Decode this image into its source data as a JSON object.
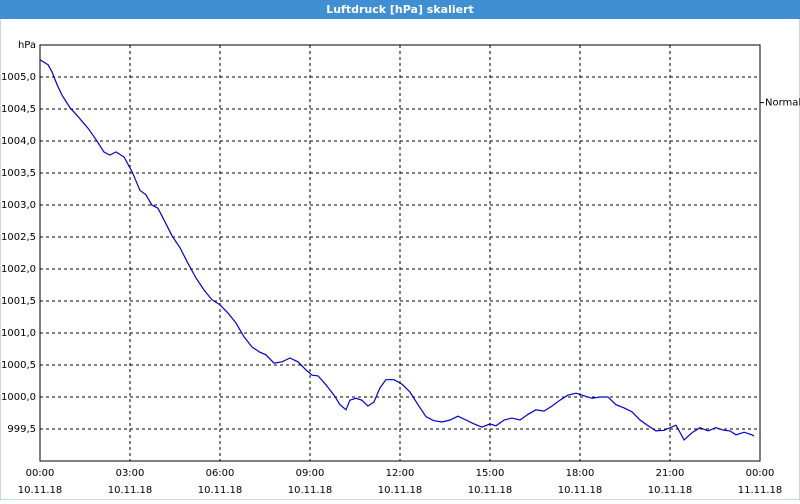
{
  "chart_data": {
    "type": "line",
    "title": "Luftdruck [hPa] skaliert",
    "y_label": "hPa",
    "color": "#0000c8",
    "grid": true,
    "xlim": [
      0,
      24
    ],
    "ylim": [
      999.0,
      1005.5
    ],
    "yticks": [
      {
        "value": 999.5,
        "label": "999,5"
      },
      {
        "value": 1000.0,
        "label": "1000,0"
      },
      {
        "value": 1000.5,
        "label": "1000,5"
      },
      {
        "value": 1001.0,
        "label": "1001,0"
      },
      {
        "value": 1001.5,
        "label": "1001,5"
      },
      {
        "value": 1002.0,
        "label": "1002,0"
      },
      {
        "value": 1002.5,
        "label": "1002,5"
      },
      {
        "value": 1003.0,
        "label": "1003,0"
      },
      {
        "value": 1003.5,
        "label": "1003,5"
      },
      {
        "value": 1004.0,
        "label": "1004,0"
      },
      {
        "value": 1004.5,
        "label": "1004,5"
      },
      {
        "value": 1005.0,
        "label": "1005,0"
      }
    ],
    "xticks": [
      {
        "value": 0,
        "label": "00:00",
        "date": "10.11.18"
      },
      {
        "value": 3,
        "label": "03:00",
        "date": "10.11.18"
      },
      {
        "value": 6,
        "label": "06:00",
        "date": "10.11.18"
      },
      {
        "value": 9,
        "label": "09:00",
        "date": "10.11.18"
      },
      {
        "value": 12,
        "label": "12:00",
        "date": "10.11.18"
      },
      {
        "value": 15,
        "label": "15:00",
        "date": "10.11.18"
      },
      {
        "value": 18,
        "label": "18:00",
        "date": "10.11.18"
      },
      {
        "value": 21,
        "label": "21:00",
        "date": "10.11.18"
      },
      {
        "value": 24,
        "label": "00:00",
        "date": "11.11.18"
      }
    ],
    "reference": {
      "label": "Normal",
      "value": 1004.6
    },
    "x": [
      0,
      0.27,
      0.4,
      0.57,
      0.73,
      1,
      1.27,
      1.6,
      1.87,
      2.13,
      2.33,
      2.53,
      2.8,
      3.07,
      3.33,
      3.53,
      3.73,
      3.93,
      4.13,
      4.4,
      4.67,
      4.93,
      5.2,
      5.47,
      5.73,
      6,
      6.27,
      6.53,
      6.8,
      7.07,
      7.33,
      7.53,
      7.8,
      8.07,
      8.33,
      8.6,
      8.87,
      9.07,
      9.27,
      9.53,
      9.8,
      10,
      10.2,
      10.33,
      10.53,
      10.73,
      10.93,
      11.13,
      11.33,
      11.53,
      11.8,
      12.07,
      12.33,
      12.6,
      12.87,
      13.13,
      13.4,
      13.67,
      13.93,
      14.2,
      14.47,
      14.73,
      15,
      15.2,
      15.47,
      15.73,
      16,
      16.27,
      16.53,
      16.8,
      17.07,
      17.33,
      17.6,
      17.87,
      18.13,
      18.4,
      18.67,
      18.93,
      19.2,
      19.47,
      19.73,
      20,
      20.27,
      20.53,
      20.8,
      21,
      21.2,
      21.47,
      21.73,
      22,
      22.27,
      22.53,
      22.8,
      23,
      23.2,
      23.47,
      23.73,
      23.8
    ],
    "values": [
      1005.27,
      1005.19,
      1005.08,
      1004.88,
      1004.72,
      1004.52,
      1004.38,
      1004.2,
      1004.02,
      1003.83,
      1003.78,
      1003.83,
      1003.75,
      1003.52,
      1003.23,
      1003.16,
      1003.0,
      1002.95,
      1002.77,
      1002.52,
      1002.33,
      1002.09,
      1001.86,
      1001.67,
      1001.52,
      1001.44,
      1001.31,
      1001.16,
      1000.94,
      1000.78,
      1000.7,
      1000.66,
      1000.53,
      1000.55,
      1000.61,
      1000.55,
      1000.42,
      1000.34,
      1000.33,
      1000.19,
      1000.03,
      999.88,
      999.8,
      999.95,
      999.98,
      999.95,
      999.86,
      999.92,
      1000.14,
      1000.27,
      1000.27,
      1000.2,
      1000.08,
      999.88,
      999.69,
      999.63,
      999.61,
      999.64,
      999.7,
      999.64,
      999.58,
      999.53,
      999.58,
      999.55,
      999.64,
      999.67,
      999.64,
      999.73,
      999.8,
      999.78,
      999.86,
      999.95,
      1000.03,
      1000.06,
      1000.02,
      999.98,
      1000.0,
      1000.0,
      999.88,
      999.83,
      999.77,
      999.64,
      999.55,
      999.47,
      999.48,
      999.52,
      999.56,
      999.33,
      999.44,
      999.52,
      999.47,
      999.52,
      999.48,
      999.47,
      999.41,
      999.45,
      999.41,
      999.39
    ]
  }
}
